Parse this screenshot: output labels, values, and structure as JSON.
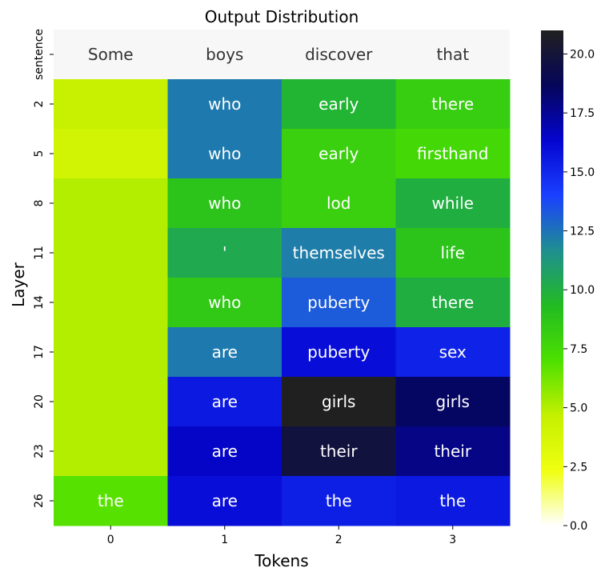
{
  "chart_data": {
    "type": "heatmap",
    "title": "Output Distribution",
    "xlabel": "Tokens",
    "ylabel": "Layer",
    "x_ticks": [
      "0",
      "1",
      "2",
      "3"
    ],
    "sentence_row": {
      "label": "sentence",
      "tokens": [
        "Some",
        "boys",
        "discover",
        "that"
      ]
    },
    "y_ticks": [
      "2",
      "5",
      "8",
      "11",
      "14",
      "17",
      "20",
      "23",
      "26"
    ],
    "cells": [
      [
        {
          "text": "",
          "value": 4.5
        },
        {
          "text": "who",
          "value": 12.3
        },
        {
          "text": "early",
          "value": 9.7
        },
        {
          "text": "there",
          "value": 8.2
        }
      ],
      [
        {
          "text": "",
          "value": 4.0
        },
        {
          "text": "who",
          "value": 12.3
        },
        {
          "text": "early",
          "value": 8.0
        },
        {
          "text": "firsthand",
          "value": 7.5
        }
      ],
      [
        {
          "text": "",
          "value": 5.0
        },
        {
          "text": "who",
          "value": 8.8
        },
        {
          "text": "lod",
          "value": 8.0
        },
        {
          "text": "while",
          "value": 10.0
        }
      ],
      [
        {
          "text": "",
          "value": 5.0
        },
        {
          "text": "'",
          "value": 10.3
        },
        {
          "text": "themselves",
          "value": 12.2
        },
        {
          "text": "life",
          "value": 8.8
        }
      ],
      [
        {
          "text": "",
          "value": 5.0
        },
        {
          "text": "who",
          "value": 8.5
        },
        {
          "text": "puberty",
          "value": 13.2
        },
        {
          "text": "there",
          "value": 10.0
        }
      ],
      [
        {
          "text": "",
          "value": 5.0
        },
        {
          "text": "are",
          "value": 12.3
        },
        {
          "text": "puberty",
          "value": 16.0
        },
        {
          "text": "sex",
          "value": 15.2
        }
      ],
      [
        {
          "text": "",
          "value": 5.0
        },
        {
          "text": "are",
          "value": 15.5
        },
        {
          "text": "girls",
          "value": 21.0
        },
        {
          "text": "girls",
          "value": 18.5
        }
      ],
      [
        {
          "text": "",
          "value": 5.0
        },
        {
          "text": "are",
          "value": 16.5
        },
        {
          "text": "their",
          "value": 19.8
        },
        {
          "text": "their",
          "value": 17.8
        }
      ],
      [
        {
          "text": "the",
          "value": 6.8
        },
        {
          "text": "are",
          "value": 16.0
        },
        {
          "text": "the",
          "value": 15.3
        },
        {
          "text": "the",
          "value": 15.5
        }
      ]
    ],
    "colorbar": {
      "range": [
        0,
        21
      ],
      "ticks": [
        "0.0",
        "2.5",
        "5.0",
        "7.5",
        "10.0",
        "12.5",
        "15.0",
        "17.5",
        "20.0"
      ],
      "colormap": [
        "#ffffff",
        "#f0ff10",
        "#c4f000",
        "#4de000",
        "#22bb22",
        "#1f8f90",
        "#1a40ff",
        "#0505d0",
        "#05055a",
        "#202020"
      ]
    }
  }
}
